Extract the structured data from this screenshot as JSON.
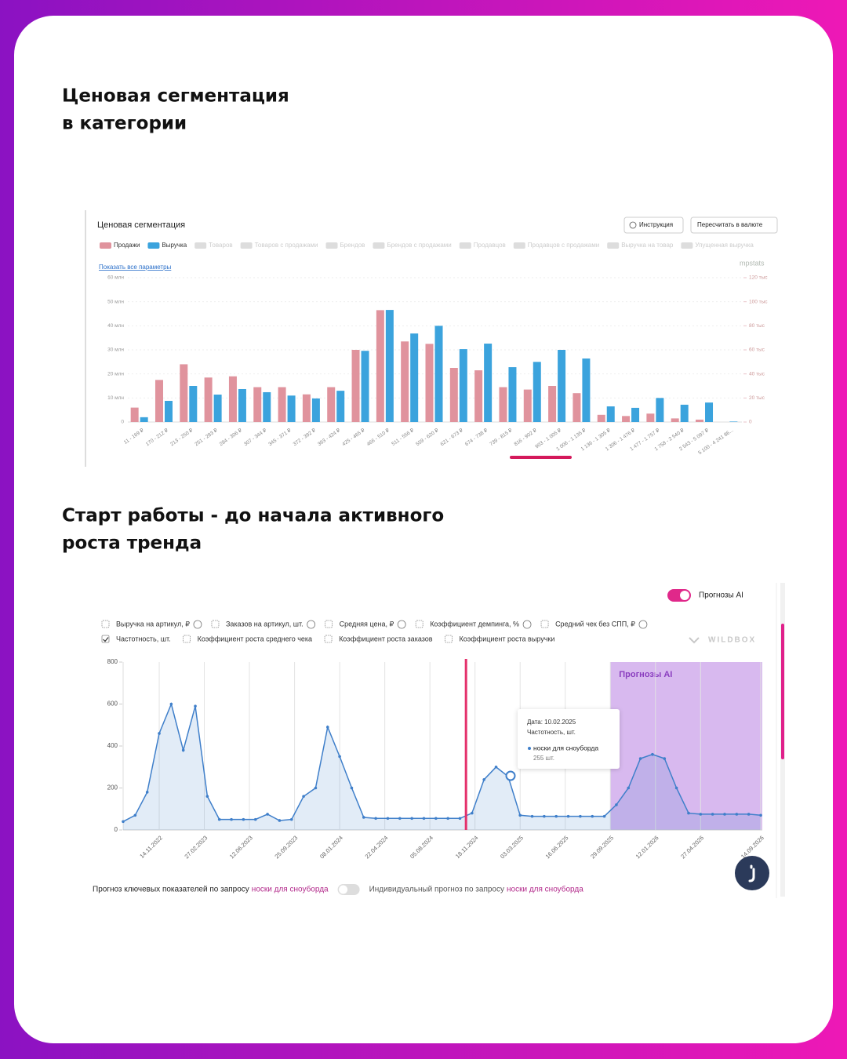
{
  "heading_1": [
    "Ценовая сегментация",
    "в категории"
  ],
  "heading_2": [
    "Старт работы - до начала активного",
    "роста тренда"
  ],
  "chart_data": [
    {
      "type": "bar",
      "title": "Ценовая сегментация",
      "buttons": [
        "Инструкция",
        "Пересчитать в валюте"
      ],
      "link": "Показать все параметры",
      "logo": "mpstats",
      "categories": [
        "11 - 169 ₽",
        "170 - 212 ₽",
        "213 - 250 ₽",
        "251 - 283 ₽",
        "284 - 306 ₽",
        "307 - 344 ₽",
        "345 - 371 ₽",
        "372 - 392 ₽",
        "393 - 424 ₽",
        "425 - 465 ₽",
        "466 - 510 ₽",
        "511 - 556 ₽",
        "559 - 620 ₽",
        "621 - 673 ₽",
        "674 - 738 ₽",
        "739 - 815 ₽",
        "816 - 902 ₽",
        "903 - 1 005 ₽",
        "1 006 - 1 135 ₽",
        "1 136 - 1 305 ₽",
        "1 306 - 1 476 ₽",
        "1 477 - 1 757 ₽",
        "1 758 - 2 540 ₽",
        "2 543 - 5 097 ₽",
        "5 100 - 4 241 86..."
      ],
      "series": [
        {
          "name": "Продажи",
          "color": "#e0939d",
          "axis": "y2",
          "values": [
            12,
            35,
            48,
            37,
            38,
            29,
            29,
            23,
            29,
            60,
            93,
            67,
            65,
            45,
            43,
            29,
            27,
            30,
            24,
            6,
            5,
            7,
            3,
            2,
            0
          ]
        },
        {
          "name": "Выручка",
          "color": "#3ba3dd",
          "values": [
            2,
            8.8,
            15,
            11.4,
            13.7,
            12.4,
            11,
            9.8,
            13,
            29.6,
            46.6,
            36.8,
            40,
            30.3,
            32.6,
            22.8,
            25,
            30,
            26.4,
            6.5,
            5.9,
            10,
            7.2,
            8.1,
            0.2
          ]
        }
      ],
      "inactive_legend": [
        "Товаров",
        "Товаров с продажами",
        "Брендов",
        "Брендов с продажами",
        "Продавцов",
        "Продавцов с продажами",
        "Выручка на товар",
        "Упущенная выручка"
      ],
      "ylim": [
        0,
        60
      ],
      "yticks": [
        0,
        {
          "value": 10,
          "label": "10 млн"
        },
        {
          "value": 20,
          "label": "20 млн"
        },
        {
          "value": 30,
          "label": "30 млн"
        },
        {
          "value": 40,
          "label": "40 млн"
        },
        {
          "value": 50,
          "label": "50 млн"
        },
        {
          "value": 60,
          "label": "60 млн"
        }
      ],
      "y2lim": [
        0,
        120
      ],
      "y2ticks": [
        0,
        {
          "value": 20,
          "label": "20 тыс"
        },
        {
          "value": 40,
          "label": "40 тыс"
        },
        {
          "value": 60,
          "label": "60 тыс"
        },
        {
          "value": 80,
          "label": "80 тыс"
        },
        {
          "value": 100,
          "label": "100 тыс"
        },
        {
          "value": 120,
          "label": "120 тыс"
        }
      ],
      "grid": true
    },
    {
      "type": "line",
      "logo": "WILDBOX",
      "options": [
        {
          "label": "Выручка на артикул, ₽",
          "checked": false
        },
        {
          "label": "Заказов на артикул, шт.",
          "checked": false
        },
        {
          "label": "Средняя цена, ₽",
          "checked": false
        },
        {
          "label": "Коэффициент демпинга, %",
          "checked": false
        },
        {
          "label": "Средний чек без СПП, ₽",
          "checked": false
        },
        {
          "label": "Частотность, шт.",
          "checked": true
        },
        {
          "label": "Коэффициент роста среднего чека",
          "checked": false
        },
        {
          "label": "Коэффициент роста заказов",
          "checked": false
        },
        {
          "label": "Коэффициент роста выручки",
          "checked": false
        }
      ],
      "x": [
        "22.08.2022",
        "19.09.2022",
        "17.10.2022",
        "14.11.2022",
        "12.12.2022",
        "09.01.2023",
        "06.02.2023",
        "06.03.2023",
        "03.04.2023",
        "01.05.2023",
        "29.05.2023",
        "26.06.2023",
        "24.07.2023",
        "21.08.2023",
        "18.09.2023",
        "16.10.2023",
        "13.11.2023",
        "11.12.2023",
        "08.01.2024",
        "05.02.2024",
        "04.03.2024",
        "01.04.2024",
        "29.04.2024",
        "27.05.2024",
        "24.06.2024",
        "22.07.2024",
        "19.08.2024",
        "16.09.2024",
        "14.10.2024",
        "11.11.2024",
        "09.12.2024",
        "06.01.2025",
        "03.02.2025",
        "03.03.2025",
        "31.03.2025",
        "28.04.2025",
        "26.05.2025",
        "23.06.2025",
        "21.07.2025",
        "18.08.2025",
        "15.09.2025",
        "13.10.2025",
        "10.11.2025",
        "08.12.2025",
        "05.01.2026",
        "02.02.2026",
        "02.03.2026",
        "30.03.2026",
        "27.04.2026",
        "25.05.2026",
        "22.06.2026",
        "20.07.2026",
        "17.08.2026",
        "14.09.2026"
      ],
      "series": [
        {
          "name": "носки для сноуборда",
          "color": "#3f7fca",
          "values": [
            40,
            70,
            180,
            460,
            600,
            380,
            590,
            160,
            50,
            50,
            50,
            50,
            75,
            45,
            50,
            160,
            200,
            490,
            350,
            200,
            60,
            55,
            55,
            55,
            55,
            55,
            55,
            55,
            55,
            80,
            240,
            300,
            255,
            70,
            65,
            65,
            65,
            65,
            65,
            65,
            65,
            120,
            200,
            340,
            360,
            340,
            200,
            80,
            75,
            75,
            75,
            75,
            75,
            70
          ]
        }
      ],
      "ylim": [
        0,
        800
      ],
      "yticks": [
        0,
        200,
        400,
        600,
        800
      ],
      "xticks": [
        "14.11.2022",
        "27.02.2023",
        "12.06.2023",
        "25.09.2023",
        "08.01.2024",
        "22.04.2024",
        "05.08.2024",
        "18.11.2024",
        "03.03.2025",
        "16.06.2025",
        "29.09.2025",
        "12.01.2026",
        "27.04.2026",
        "14.09.2026"
      ],
      "grid": true,
      "forecast": {
        "label": "Прогнозы AI",
        "from": "29.09.2025",
        "color": "#c79be8"
      },
      "marker": {
        "x": "28.10.2024",
        "color": "#e4306b"
      },
      "tooltip": {
        "date": "Дата: 10.02.2025",
        "metric": "Частотность, шт.",
        "value": "255 шт."
      },
      "footer": {
        "forecast_text": "Прогноз ключевых показателей по запросу",
        "individual_text": "Индивидуальный прогноз по запросу"
      }
    }
  ]
}
